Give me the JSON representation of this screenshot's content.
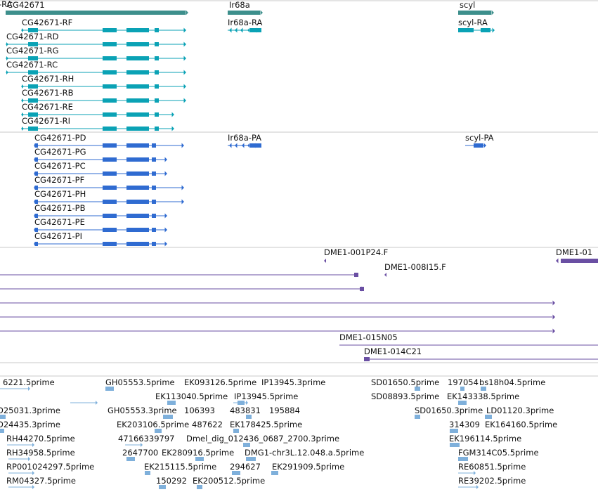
{
  "colors": {
    "gene": "#3d8f8c",
    "transcript": "#0aa2b5",
    "protein": "#2f6bd1",
    "clone": "#6a4fa3",
    "est": "#7fb0db",
    "separator": "#c8c8c8"
  },
  "genes": [
    {
      "label": "CG42671"
    },
    {
      "label": "Ir68a"
    },
    {
      "label": "scyl"
    }
  ],
  "transcripts": [
    {
      "label": "-RA"
    },
    {
      "label": "CG42671-RF"
    },
    {
      "label": "CG42671-RD"
    },
    {
      "label": "CG42671-RG"
    },
    {
      "label": "CG42671-RC"
    },
    {
      "label": "CG42671-RH"
    },
    {
      "label": "CG42671-RB"
    },
    {
      "label": "CG42671-RE"
    },
    {
      "label": "CG42671-RI"
    },
    {
      "label": "Ir68a-RA"
    },
    {
      "label": "scyl-RA"
    }
  ],
  "proteins": [
    {
      "label": "CG42671-PD"
    },
    {
      "label": "CG42671-PG"
    },
    {
      "label": "CG42671-PC"
    },
    {
      "label": "CG42671-PF"
    },
    {
      "label": "CG42671-PH"
    },
    {
      "label": "CG42671-PB"
    },
    {
      "label": "CG42671-PE"
    },
    {
      "label": "CG42671-PI"
    },
    {
      "label": "Ir68a-PA"
    },
    {
      "label": "scyl-PA"
    }
  ],
  "clones": [
    {
      "label": "DME1-001P24.F"
    },
    {
      "label": "DME1-01"
    },
    {
      "label": "DME1-008I15.F"
    },
    {
      "label": "DME1-015N05"
    },
    {
      "label": "DME1-014C21"
    }
  ],
  "ests": [
    {
      "label": "6221.5prime"
    },
    {
      "label": "GH05553.5prime"
    },
    {
      "label": "EK093126.5prime"
    },
    {
      "label": "IP13945.3prime"
    },
    {
      "label": "SD01650.5prime"
    },
    {
      "label": "197054"
    },
    {
      "label": "bs18h04.5prime"
    },
    {
      "label": "EK113040.5prime"
    },
    {
      "label": "IP13945.5prime"
    },
    {
      "label": "SD08893.5prime"
    },
    {
      "label": "EK143338.5prime"
    },
    {
      "label": "D25031.3prime"
    },
    {
      "label": "GH05553.3prime"
    },
    {
      "label": "106393"
    },
    {
      "label": "483831"
    },
    {
      "label": "195884"
    },
    {
      "label": "SD01650.3prime"
    },
    {
      "label": "LD01120.3prime"
    },
    {
      "label": "D24435.3prime"
    },
    {
      "label": "EK203106.5prime"
    },
    {
      "label": "487622"
    },
    {
      "label": "EK178425.5prime"
    },
    {
      "label": "314309"
    },
    {
      "label": "EK164160.5prime"
    },
    {
      "label": "RH44270.5prime"
    },
    {
      "label": "47166339797"
    },
    {
      "label": "Dmel_dig_012436_0687_2700.3prime"
    },
    {
      "label": "EK196114.5prime"
    },
    {
      "label": "RH34958.5prime"
    },
    {
      "label": "2647700"
    },
    {
      "label": "EK280916.5prime"
    },
    {
      "label": "DMG1-chr3L.12.048.a.5prime"
    },
    {
      "label": "FGM314C05.5prime"
    },
    {
      "label": "RP001024297.5prime"
    },
    {
      "label": "EK215115.5prime"
    },
    {
      "label": "294627"
    },
    {
      "label": "EK291909.5prime"
    },
    {
      "label": "RE60851.5prime"
    },
    {
      "label": "RM04327.5prime"
    },
    {
      "label": "150292"
    },
    {
      "label": "EK200512.5prime"
    },
    {
      "label": "RE39202.5prime"
    }
  ]
}
